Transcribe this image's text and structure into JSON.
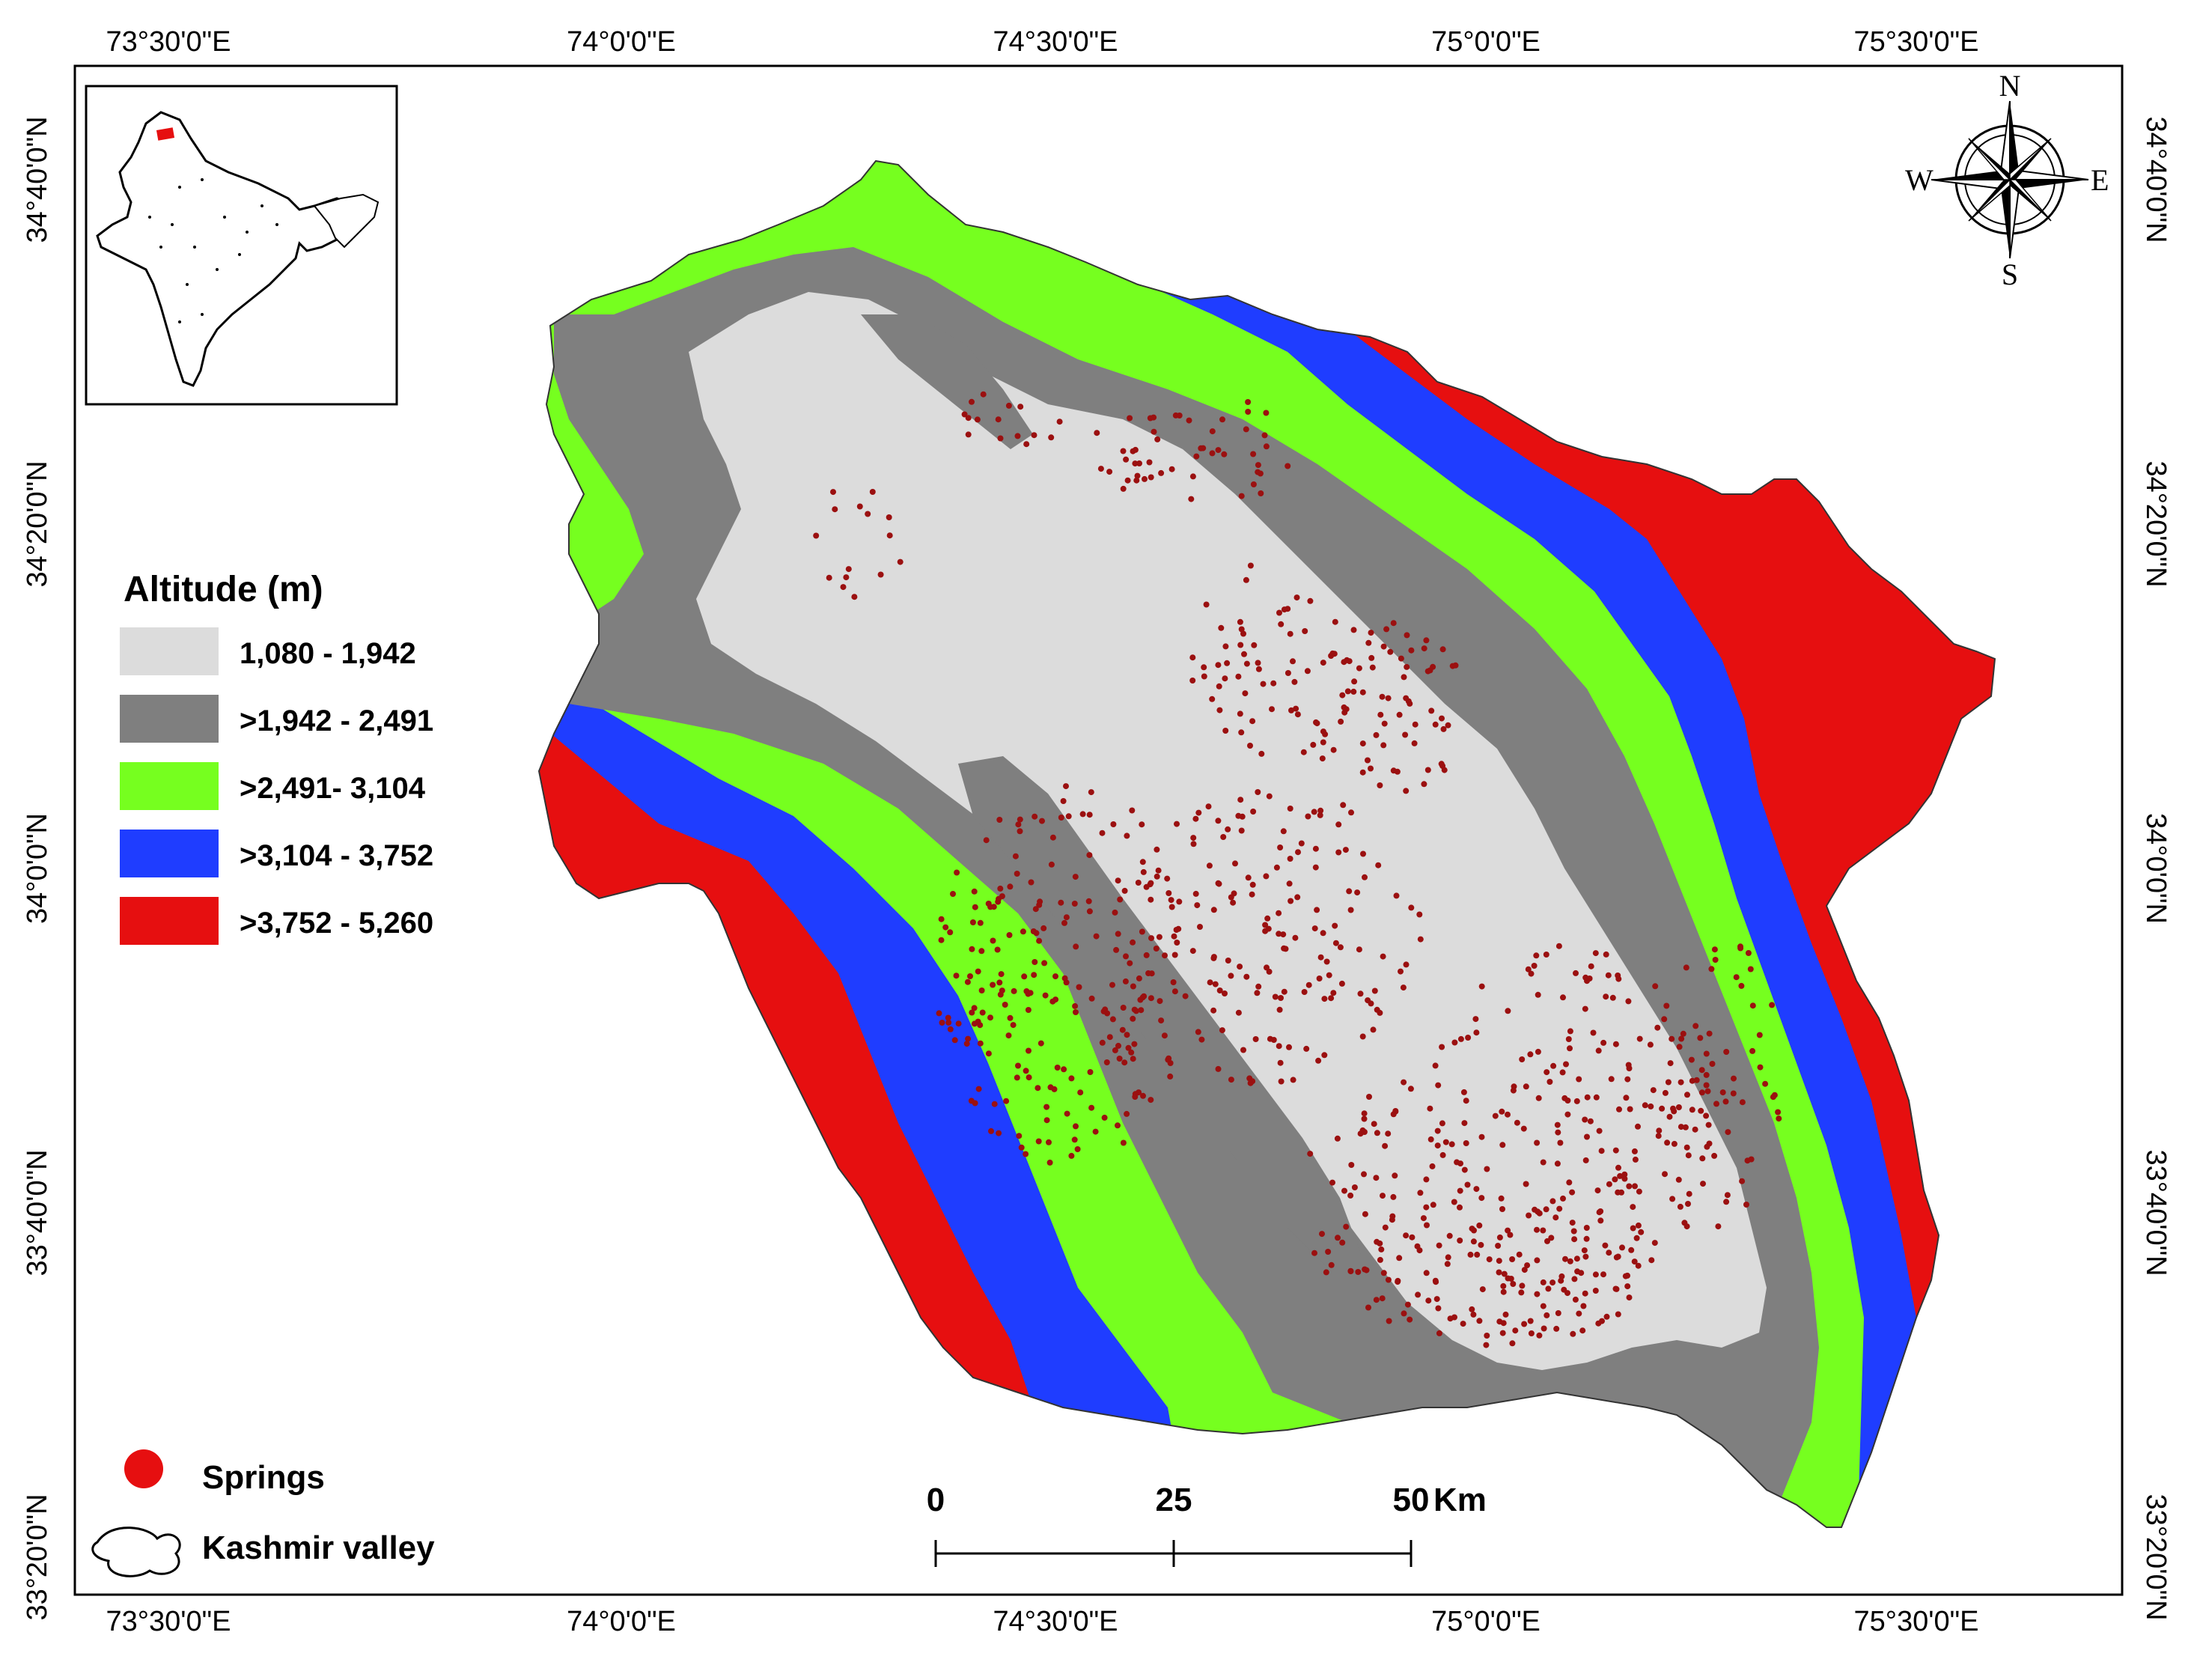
{
  "coordinates": {
    "top_labels": [
      "73°30'0\"E",
      "74°0'0\"E",
      "74°30'0\"E",
      "75°0'0\"E",
      "75°30'0\"E"
    ],
    "bottom_labels": [
      "73°30'0\"E",
      "74°0'0\"E",
      "74°30'0\"E",
      "75°0'0\"E",
      "75°30'0\"E"
    ],
    "left_labels": [
      "34°40'0\"N",
      "34°20'0\"N",
      "34°0'0\"N",
      "33°40'0\"N",
      "33°20'0\"N"
    ],
    "right_labels": [
      "34°40'0\"N",
      "34°20'0\"N",
      "34°0'0\"N",
      "33°40'0\"N",
      "33°20'0\"N"
    ]
  },
  "legend": {
    "title": "Altitude (m)",
    "classes": [
      {
        "label": "1,080 - 1,942",
        "color": "#dcdcdc"
      },
      {
        "label": ">1,942 - 2,491",
        "color": "#7f7f7f"
      },
      {
        "label": ">2,491- 3,104",
        "color": "#76ff1f"
      },
      {
        "label": ">3,104 - 3,752",
        "color": "#1f3dff"
      },
      {
        "label": ">3,752 - 5,260",
        "color": "#e60f10"
      }
    ],
    "springs_label": "Springs",
    "springs_color": "#e60f10",
    "springs_dot_color": "#9b1010",
    "valley_label": "Kashmir valley"
  },
  "scale_bar": {
    "ticks": [
      "0",
      "25",
      "50"
    ],
    "unit": "Km"
  },
  "compass": {
    "north": "N",
    "south": "S",
    "east": "E",
    "west": "W"
  },
  "inset": {
    "highlight_color": "#e60f10"
  }
}
